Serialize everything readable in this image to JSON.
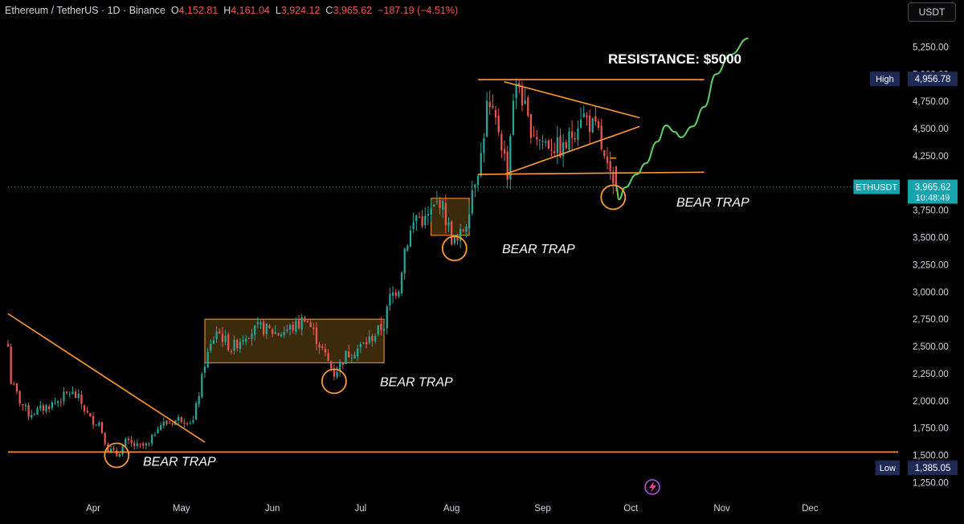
{
  "header": {
    "symbol": "Ethereum / TetherUS · 1D · Binance",
    "o_label": "O",
    "o_value": "4,152.81",
    "h_label": "H",
    "h_value": "4,161.04",
    "l_label": "L",
    "l_value": "3,924.12",
    "c_label": "C",
    "c_value": "3,965.62",
    "change": "−187.19 (−4.51%)"
  },
  "currency_button": "USDT",
  "colors": {
    "up": "#26a69a",
    "down": "#ef5350",
    "annotation": "#ff9a2e",
    "projection": "#5fd35f",
    "axis_text": "#d1d4dc",
    "badge_high": "#1e2a55",
    "badge_last": "#16a4b0"
  },
  "badges": {
    "high": {
      "label": "High",
      "value": "4,956.78"
    },
    "last": {
      "label": "ETHUSDT",
      "value": "3,965.62",
      "countdown": "10:48:49"
    },
    "low": {
      "label": "Low",
      "value": "1,385.05"
    }
  },
  "annotations": {
    "resistance": "RESISTANCE: $5000",
    "bear_trap": "BEAR TRAP"
  },
  "chart_data": {
    "type": "candlestick",
    "title": "",
    "x_tick_labels": [
      "Apr",
      "May",
      "Jun",
      "Jul",
      "Aug",
      "Sep",
      "Oct",
      "Nov",
      "Dec"
    ],
    "y_tick_labels": [
      "1,250.00",
      "1,500.00",
      "1,750.00",
      "2,000.00",
      "2,250.00",
      "2,500.00",
      "2,750.00",
      "3,000.00",
      "3,250.00",
      "3,500.00",
      "3,750.00",
      "4,000.00",
      "4,250.00",
      "4,500.00",
      "4,750.00",
      "5,000.00",
      "5,250.00"
    ],
    "y_ticks": [
      1250,
      1500,
      1750,
      2000,
      2250,
      2500,
      2750,
      3000,
      3250,
      3500,
      3750,
      4000,
      4250,
      4500,
      4750,
      5000,
      5250
    ],
    "ylim": [
      1120,
      5460
    ],
    "x_month_starts": [
      "2025-04-01",
      "2025-05-01",
      "2025-06-01",
      "2025-07-01",
      "2025-08-01",
      "2025-09-01",
      "2025-10-01",
      "2025-11-01",
      "2025-12-01"
    ],
    "xlim": [
      "2025-03-03",
      "2025-12-31"
    ],
    "grid": false,
    "price_anchors": [
      [
        "2025-03-03",
        2500
      ],
      [
        "2025-03-04",
        2180
      ],
      [
        "2025-03-07",
        2000
      ],
      [
        "2025-03-10",
        1880
      ],
      [
        "2025-03-14",
        1920
      ],
      [
        "2025-03-20",
        2000
      ],
      [
        "2025-03-24",
        2080
      ],
      [
        "2025-03-27",
        2020
      ],
      [
        "2025-03-31",
        1830
      ],
      [
        "2025-04-03",
        1800
      ],
      [
        "2025-04-06",
        1560
      ],
      [
        "2025-04-09",
        1500
      ],
      [
        "2025-04-12",
        1620
      ],
      [
        "2025-04-16",
        1580
      ],
      [
        "2025-04-20",
        1590
      ],
      [
        "2025-04-23",
        1780
      ],
      [
        "2025-04-27",
        1800
      ],
      [
        "2025-05-01",
        1840
      ],
      [
        "2025-05-05",
        1810
      ],
      [
        "2025-05-08",
        2200
      ],
      [
        "2025-05-09",
        2350
      ],
      [
        "2025-05-13",
        2650
      ],
      [
        "2025-05-18",
        2480
      ],
      [
        "2025-05-23",
        2620
      ],
      [
        "2025-05-28",
        2670
      ],
      [
        "2025-06-03",
        2620
      ],
      [
        "2025-06-10",
        2700
      ],
      [
        "2025-06-12",
        2780
      ],
      [
        "2025-06-17",
        2520
      ],
      [
        "2025-06-22",
        2250
      ],
      [
        "2025-06-26",
        2420
      ],
      [
        "2025-06-30",
        2480
      ],
      [
        "2025-07-04",
        2560
      ],
      [
        "2025-07-09",
        2700
      ],
      [
        "2025-07-11",
        2950
      ],
      [
        "2025-07-14",
        3050
      ],
      [
        "2025-07-16",
        3400
      ],
      [
        "2025-07-20",
        3700
      ],
      [
        "2025-07-23",
        3650
      ],
      [
        "2025-07-28",
        3850
      ],
      [
        "2025-08-01",
        3500
      ],
      [
        "2025-08-03",
        3450
      ],
      [
        "2025-08-06",
        3650
      ],
      [
        "2025-08-08",
        3950
      ],
      [
        "2025-08-11",
        4250
      ],
      [
        "2025-08-13",
        4700
      ],
      [
        "2025-08-17",
        4500
      ],
      [
        "2025-08-20",
        4100
      ],
      [
        "2025-08-22",
        4800
      ],
      [
        "2025-08-24",
        4900
      ],
      [
        "2025-08-27",
        4550
      ],
      [
        "2025-08-31",
        4400
      ],
      [
        "2025-09-04",
        4350
      ],
      [
        "2025-09-08",
        4300
      ],
      [
        "2025-09-12",
        4500
      ],
      [
        "2025-09-14",
        4650
      ],
      [
        "2025-09-17",
        4550
      ],
      [
        "2025-09-20",
        4450
      ],
      [
        "2025-09-22",
        4200
      ],
      [
        "2025-09-25",
        3950
      ],
      [
        "2025-09-26",
        3965.62
      ]
    ],
    "bear_trap_boxes": [
      {
        "from": "2025-05-09",
        "to": "2025-07-09",
        "low": 2350,
        "high": 2750
      },
      {
        "from": "2025-07-25",
        "to": "2025-08-07",
        "low": 3520,
        "high": 3860
      }
    ],
    "bear_trap_circles": [
      {
        "date": "2025-04-09",
        "price": 1500
      },
      {
        "date": "2025-06-22",
        "price": 2180
      },
      {
        "date": "2025-08-02",
        "price": 3400
      },
      {
        "date": "2025-09-25",
        "price": 3870
      }
    ],
    "trend_lines": [
      {
        "from": [
          "2025-03-03",
          2800
        ],
        "to": [
          "2025-05-09",
          1620
        ]
      },
      {
        "from": [
          "2025-03-03",
          1530
        ],
        "to": [
          "2025-12-31",
          1530
        ]
      },
      {
        "from": [
          "2025-08-10",
          4950
        ],
        "to": [
          "2025-10-26",
          4950
        ]
      },
      {
        "from": [
          "2025-08-10",
          4080
        ],
        "to": [
          "2025-10-26",
          4100
        ]
      },
      {
        "from": [
          "2025-08-19",
          4930
        ],
        "to": [
          "2025-10-04",
          4600
        ]
      },
      {
        "from": [
          "2025-08-19",
          4080
        ],
        "to": [
          "2025-10-04",
          4520
        ]
      },
      {
        "from": [
          "2025-09-24",
          4230
        ],
        "to": [
          "2025-09-26",
          4230
        ]
      }
    ],
    "projection": [
      [
        "2025-09-26",
        3965
      ],
      [
        "2025-09-27",
        3850
      ],
      [
        "2025-09-29",
        3960
      ],
      [
        "2025-10-03",
        4080
      ],
      [
        "2025-10-06",
        4180
      ],
      [
        "2025-10-10",
        4380
      ],
      [
        "2025-10-13",
        4530
      ],
      [
        "2025-10-16",
        4470
      ],
      [
        "2025-10-18",
        4420
      ],
      [
        "2025-10-22",
        4520
      ],
      [
        "2025-10-26",
        4700
      ],
      [
        "2025-10-30",
        5000
      ],
      [
        "2025-11-04",
        5180
      ],
      [
        "2025-11-10",
        5330
      ]
    ],
    "legend": []
  }
}
